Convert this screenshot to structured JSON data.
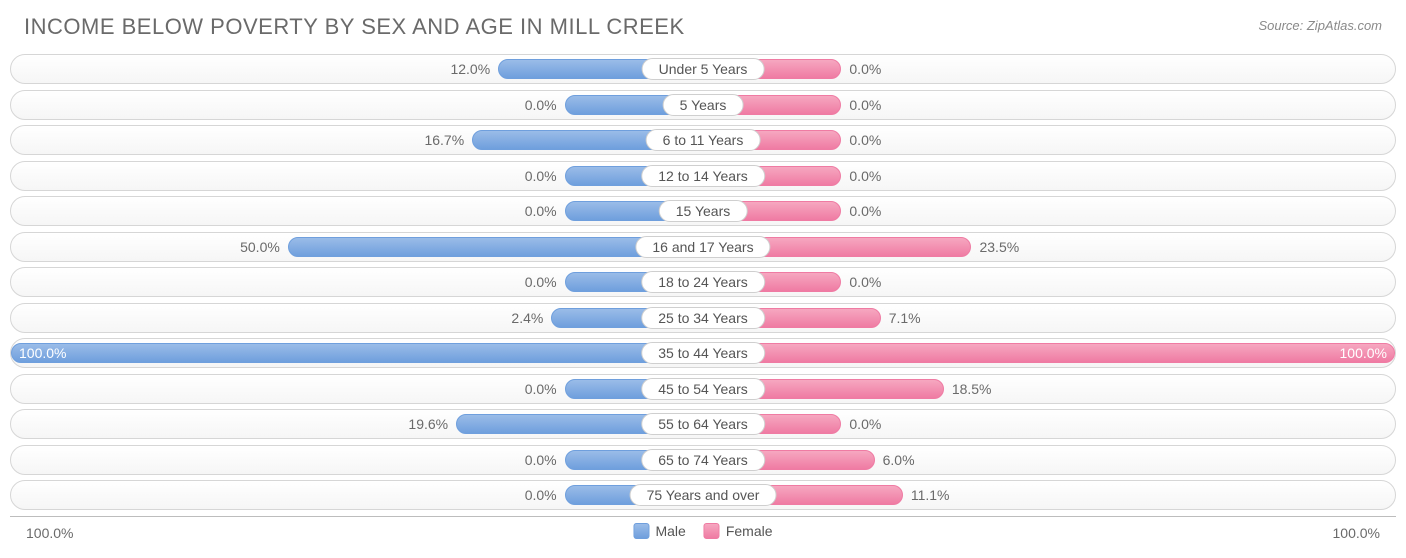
{
  "title": "INCOME BELOW POVERTY BY SEX AND AGE IN MILL CREEK",
  "source": "Source: ZipAtlas.com",
  "legend": {
    "male": "Male",
    "female": "Female"
  },
  "axis": {
    "left": "100.0%",
    "right": "100.0%"
  },
  "chart": {
    "type": "diverging-bar",
    "male_color_top": "#9abce8",
    "male_color_bottom": "#6f9fdd",
    "female_color_top": "#f6a7c0",
    "female_color_bottom": "#ef7ba3",
    "track_border": "#d6d6d6",
    "min_bar_pct": 20.0,
    "categories": [
      {
        "label": "Under 5 Years",
        "male": 12.0,
        "female": 0.0
      },
      {
        "label": "5 Years",
        "male": 0.0,
        "female": 0.0
      },
      {
        "label": "6 to 11 Years",
        "male": 16.7,
        "female": 0.0
      },
      {
        "label": "12 to 14 Years",
        "male": 0.0,
        "female": 0.0
      },
      {
        "label": "15 Years",
        "male": 0.0,
        "female": 0.0
      },
      {
        "label": "16 and 17 Years",
        "male": 50.0,
        "female": 23.5
      },
      {
        "label": "18 to 24 Years",
        "male": 0.0,
        "female": 0.0
      },
      {
        "label": "25 to 34 Years",
        "male": 2.4,
        "female": 7.1
      },
      {
        "label": "35 to 44 Years",
        "male": 100.0,
        "female": 100.0
      },
      {
        "label": "45 to 54 Years",
        "male": 0.0,
        "female": 18.5
      },
      {
        "label": "55 to 64 Years",
        "male": 19.6,
        "female": 0.0
      },
      {
        "label": "65 to 74 Years",
        "male": 0.0,
        "female": 6.0
      },
      {
        "label": "75 Years and over",
        "male": 0.0,
        "female": 11.1
      }
    ]
  }
}
